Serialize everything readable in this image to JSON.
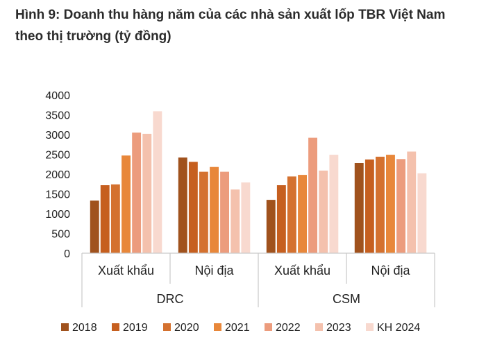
{
  "title": "Hình 9: Doanh thu hàng năm của các nhà sản xuất lốp TBR Việt Nam theo thị trường (tỷ đồng)",
  "chart_data": {
    "type": "bar",
    "title": "Hình 9: Doanh thu hàng năm của các nhà sản xuất lốp TBR Việt Nam theo thị trường (tỷ đồng)",
    "xlabel": "",
    "ylabel": "",
    "ylim": [
      0,
      4000
    ],
    "yticks": [
      0,
      500,
      1000,
      1500,
      2000,
      2500,
      3000,
      3500,
      4000
    ],
    "groups": [
      {
        "label": "DRC",
        "categories": [
          "Xuất khẩu",
          "Nội địa"
        ]
      },
      {
        "label": "CSM",
        "categories": [
          "Xuất khẩu",
          "Nội địa"
        ]
      }
    ],
    "categories": [
      "Xuất khẩu",
      "Nội địa",
      "Xuất khẩu",
      "Nội địa"
    ],
    "series": [
      {
        "name": "2018",
        "color": "#a0521d",
        "values": [
          1330,
          2420,
          1350,
          2280
        ]
      },
      {
        "name": "2019",
        "color": "#c65f1f",
        "values": [
          1720,
          2310,
          1720,
          2370
        ]
      },
      {
        "name": "2020",
        "color": "#d4712f",
        "values": [
          1740,
          2060,
          1940,
          2440
        ]
      },
      {
        "name": "2021",
        "color": "#e8873a",
        "values": [
          2470,
          2180,
          1980,
          2490
        ]
      },
      {
        "name": "2022",
        "color": "#ec9c7d",
        "values": [
          3050,
          2060,
          2920,
          2380
        ]
      },
      {
        "name": "2023",
        "color": "#f4c1ad",
        "values": [
          3020,
          1610,
          2090,
          2570
        ]
      },
      {
        "name": "KH 2024",
        "color": "#f8d9cf",
        "values": [
          3590,
          1790,
          2490,
          2020
        ]
      }
    ],
    "grid": false,
    "legend_position": "bottom"
  }
}
